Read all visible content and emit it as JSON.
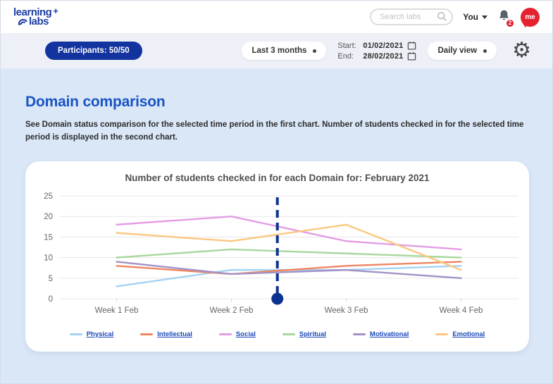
{
  "header": {
    "logo_line1": "learning",
    "logo_plus": "+",
    "logo_line2": "labs",
    "search_placeholder": "Search labs",
    "user_menu_label": "You",
    "notification_count": "2",
    "avatar_label": "me"
  },
  "toolbar": {
    "participants_label": "Participants: 50/50",
    "range_dropdown_label": "Last 3 months",
    "start_label": "Start:",
    "start_value": "01/02/2021",
    "end_label": "End:",
    "end_value": "28/02/2021",
    "view_dropdown_label": "Daily view",
    "gear_icon": "⚙"
  },
  "page": {
    "title": "Domain comparison",
    "description": "See Domain status comparison for the selected time period in the first chart. Number of students checked in for the selected time period is displayed in the second chart."
  },
  "chart_data": {
    "type": "line",
    "title": "Number of students checked in for each Domain for: February 2021",
    "categories": [
      "Week 1 Feb",
      "Week 2 Feb",
      "Week 3 Feb",
      "Week 4 Feb"
    ],
    "series": [
      {
        "name": "Physical",
        "color": "#a3d3f2",
        "values": [
          3,
          7,
          7,
          8
        ]
      },
      {
        "name": "Intellectual",
        "color": "#ef8561",
        "values": [
          8,
          6,
          8,
          9
        ]
      },
      {
        "name": "Social",
        "color": "#e39ce4",
        "values": [
          18,
          20,
          14,
          12
        ]
      },
      {
        "name": "Spiritual",
        "color": "#a8d79c",
        "values": [
          10,
          12,
          11,
          10
        ]
      },
      {
        "name": "Motivational",
        "color": "#a292c6",
        "values": [
          9,
          6,
          7,
          5
        ]
      },
      {
        "name": "Emotional",
        "color": "#fbc780",
        "values": [
          16,
          14,
          18,
          7
        ]
      }
    ],
    "ylim": [
      0,
      25
    ],
    "yticks": [
      0,
      5,
      10,
      15,
      20,
      25
    ],
    "grid": true,
    "legend_position": "bottom",
    "timeline_marker": {
      "between_categories": [
        1,
        2
      ],
      "fraction": 0.4,
      "color": "#0d3390"
    }
  }
}
